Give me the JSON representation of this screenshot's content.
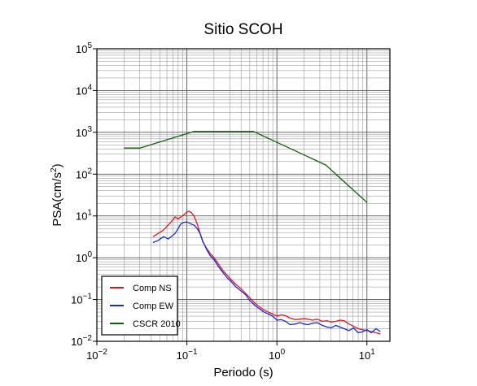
{
  "chart_data": {
    "type": "line",
    "title": "Sitio SCOH",
    "xlabel": "Periodo (s)",
    "ylabel_main": "PSA(cm/s",
    "ylabel_sup": "2",
    "ylabel_close": ")",
    "x_scale": "log",
    "y_scale": "log",
    "xlim": [
      0.01,
      18
    ],
    "ylim": [
      0.01,
      100000
    ],
    "grid": true,
    "legend_position": "bottom-left",
    "x_ticks": [
      {
        "value": 0.01,
        "base": "10",
        "exp": "−2"
      },
      {
        "value": 0.1,
        "base": "10",
        "exp": "−1"
      },
      {
        "value": 1,
        "base": "10",
        "exp": "0"
      },
      {
        "value": 10,
        "base": "10",
        "exp": "1"
      }
    ],
    "y_ticks": [
      {
        "value": 0.01,
        "base": "10",
        "exp": "−2"
      },
      {
        "value": 0.1,
        "base": "10",
        "exp": "−1"
      },
      {
        "value": 1,
        "base": "10",
        "exp": "0"
      },
      {
        "value": 10,
        "base": "10",
        "exp": "1"
      },
      {
        "value": 100,
        "base": "10",
        "exp": "2"
      },
      {
        "value": 1000,
        "base": "10",
        "exp": "3"
      },
      {
        "value": 10000,
        "base": "10",
        "exp": "4"
      },
      {
        "value": 100000,
        "base": "10",
        "exp": "5"
      }
    ],
    "series": [
      {
        "name": "Comp NS",
        "color": "#e8141a",
        "x": [
          0.042,
          0.048,
          0.055,
          0.062,
          0.068,
          0.074,
          0.08,
          0.086,
          0.092,
          0.1,
          0.106,
          0.112,
          0.12,
          0.13,
          0.14,
          0.15,
          0.165,
          0.18,
          0.2,
          0.22,
          0.25,
          0.28,
          0.31,
          0.35,
          0.4,
          0.45,
          0.5,
          0.56,
          0.62,
          0.7,
          0.8,
          0.9,
          1.0,
          1.12,
          1.25,
          1.4,
          1.6,
          1.8,
          2.0,
          2.2,
          2.5,
          2.8,
          3.2,
          3.6,
          4.0,
          4.5,
          5.0,
          5.6,
          6.3,
          7.1,
          8.0,
          9.0,
          10,
          11.2,
          12.6,
          14.1
        ],
        "y": [
          3.2,
          3.8,
          4.6,
          6.0,
          7.5,
          9.5,
          8.5,
          9.5,
          10.5,
          12.5,
          13.0,
          12.0,
          10.0,
          6.5,
          3.8,
          2.4,
          1.7,
          1.3,
          1.0,
          0.75,
          0.5,
          0.38,
          0.3,
          0.23,
          0.18,
          0.14,
          0.11,
          0.085,
          0.07,
          0.058,
          0.05,
          0.045,
          0.04,
          0.043,
          0.041,
          0.036,
          0.033,
          0.034,
          0.035,
          0.034,
          0.032,
          0.034,
          0.03,
          0.031,
          0.029,
          0.03,
          0.032,
          0.031,
          0.026,
          0.023,
          0.02,
          0.019,
          0.018,
          0.017,
          0.016,
          0.015
        ]
      },
      {
        "name": "Comp EW",
        "color": "#1428f0",
        "x": [
          0.042,
          0.048,
          0.055,
          0.062,
          0.068,
          0.074,
          0.08,
          0.086,
          0.092,
          0.1,
          0.106,
          0.112,
          0.12,
          0.13,
          0.14,
          0.15,
          0.165,
          0.18,
          0.2,
          0.22,
          0.25,
          0.28,
          0.31,
          0.35,
          0.4,
          0.45,
          0.5,
          0.56,
          0.62,
          0.7,
          0.8,
          0.9,
          1.0,
          1.12,
          1.25,
          1.4,
          1.6,
          1.8,
          2.0,
          2.2,
          2.5,
          2.8,
          3.2,
          3.6,
          4.0,
          4.5,
          5.0,
          5.6,
          6.3,
          7.1,
          8.0,
          9.0,
          10,
          11.2,
          12.6,
          14.1
        ],
        "y": [
          2.3,
          2.6,
          3.2,
          2.8,
          3.3,
          3.8,
          5.0,
          6.5,
          7.0,
          7.2,
          6.8,
          6.4,
          6.0,
          5.0,
          3.8,
          2.5,
          1.6,
          1.15,
          0.9,
          0.65,
          0.45,
          0.33,
          0.27,
          0.2,
          0.16,
          0.13,
          0.095,
          0.075,
          0.063,
          0.052,
          0.045,
          0.04,
          0.032,
          0.033,
          0.03,
          0.025,
          0.026,
          0.028,
          0.026,
          0.025,
          0.027,
          0.028,
          0.024,
          0.022,
          0.021,
          0.024,
          0.022,
          0.02,
          0.018,
          0.021,
          0.016,
          0.017,
          0.019,
          0.016,
          0.02,
          0.017
        ]
      },
      {
        "name": "CSCR 2010",
        "color": "#0f620f",
        "x": [
          0.02,
          0.03,
          0.12,
          0.55,
          3.5,
          10
        ],
        "y": [
          420,
          420,
          1050,
          1050,
          165,
          21
        ]
      }
    ]
  }
}
